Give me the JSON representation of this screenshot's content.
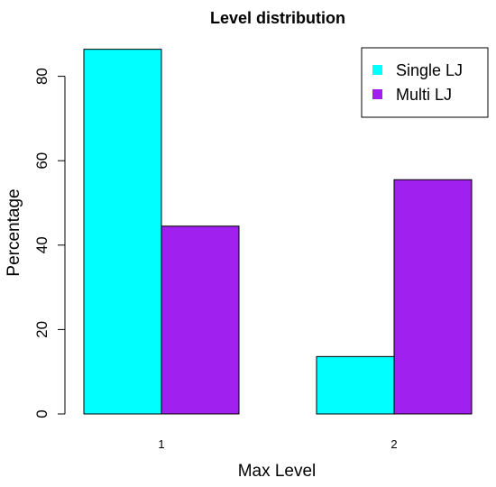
{
  "chart_data": {
    "type": "bar",
    "title": "Level distribution",
    "xlabel": "Max Level",
    "ylabel": "Percentage",
    "categories": [
      "1",
      "2"
    ],
    "series": [
      {
        "name": "Single LJ",
        "values": [
          86.4,
          13.6
        ],
        "color": "#00FFFF"
      },
      {
        "name": "Multi LJ",
        "values": [
          44.5,
          55.5
        ],
        "color": "#A020F0"
      }
    ],
    "yticks": [
      0,
      20,
      40,
      60,
      80
    ],
    "ylim": [
      0,
      86.4
    ],
    "grid": false,
    "legend_position": "top-right"
  }
}
